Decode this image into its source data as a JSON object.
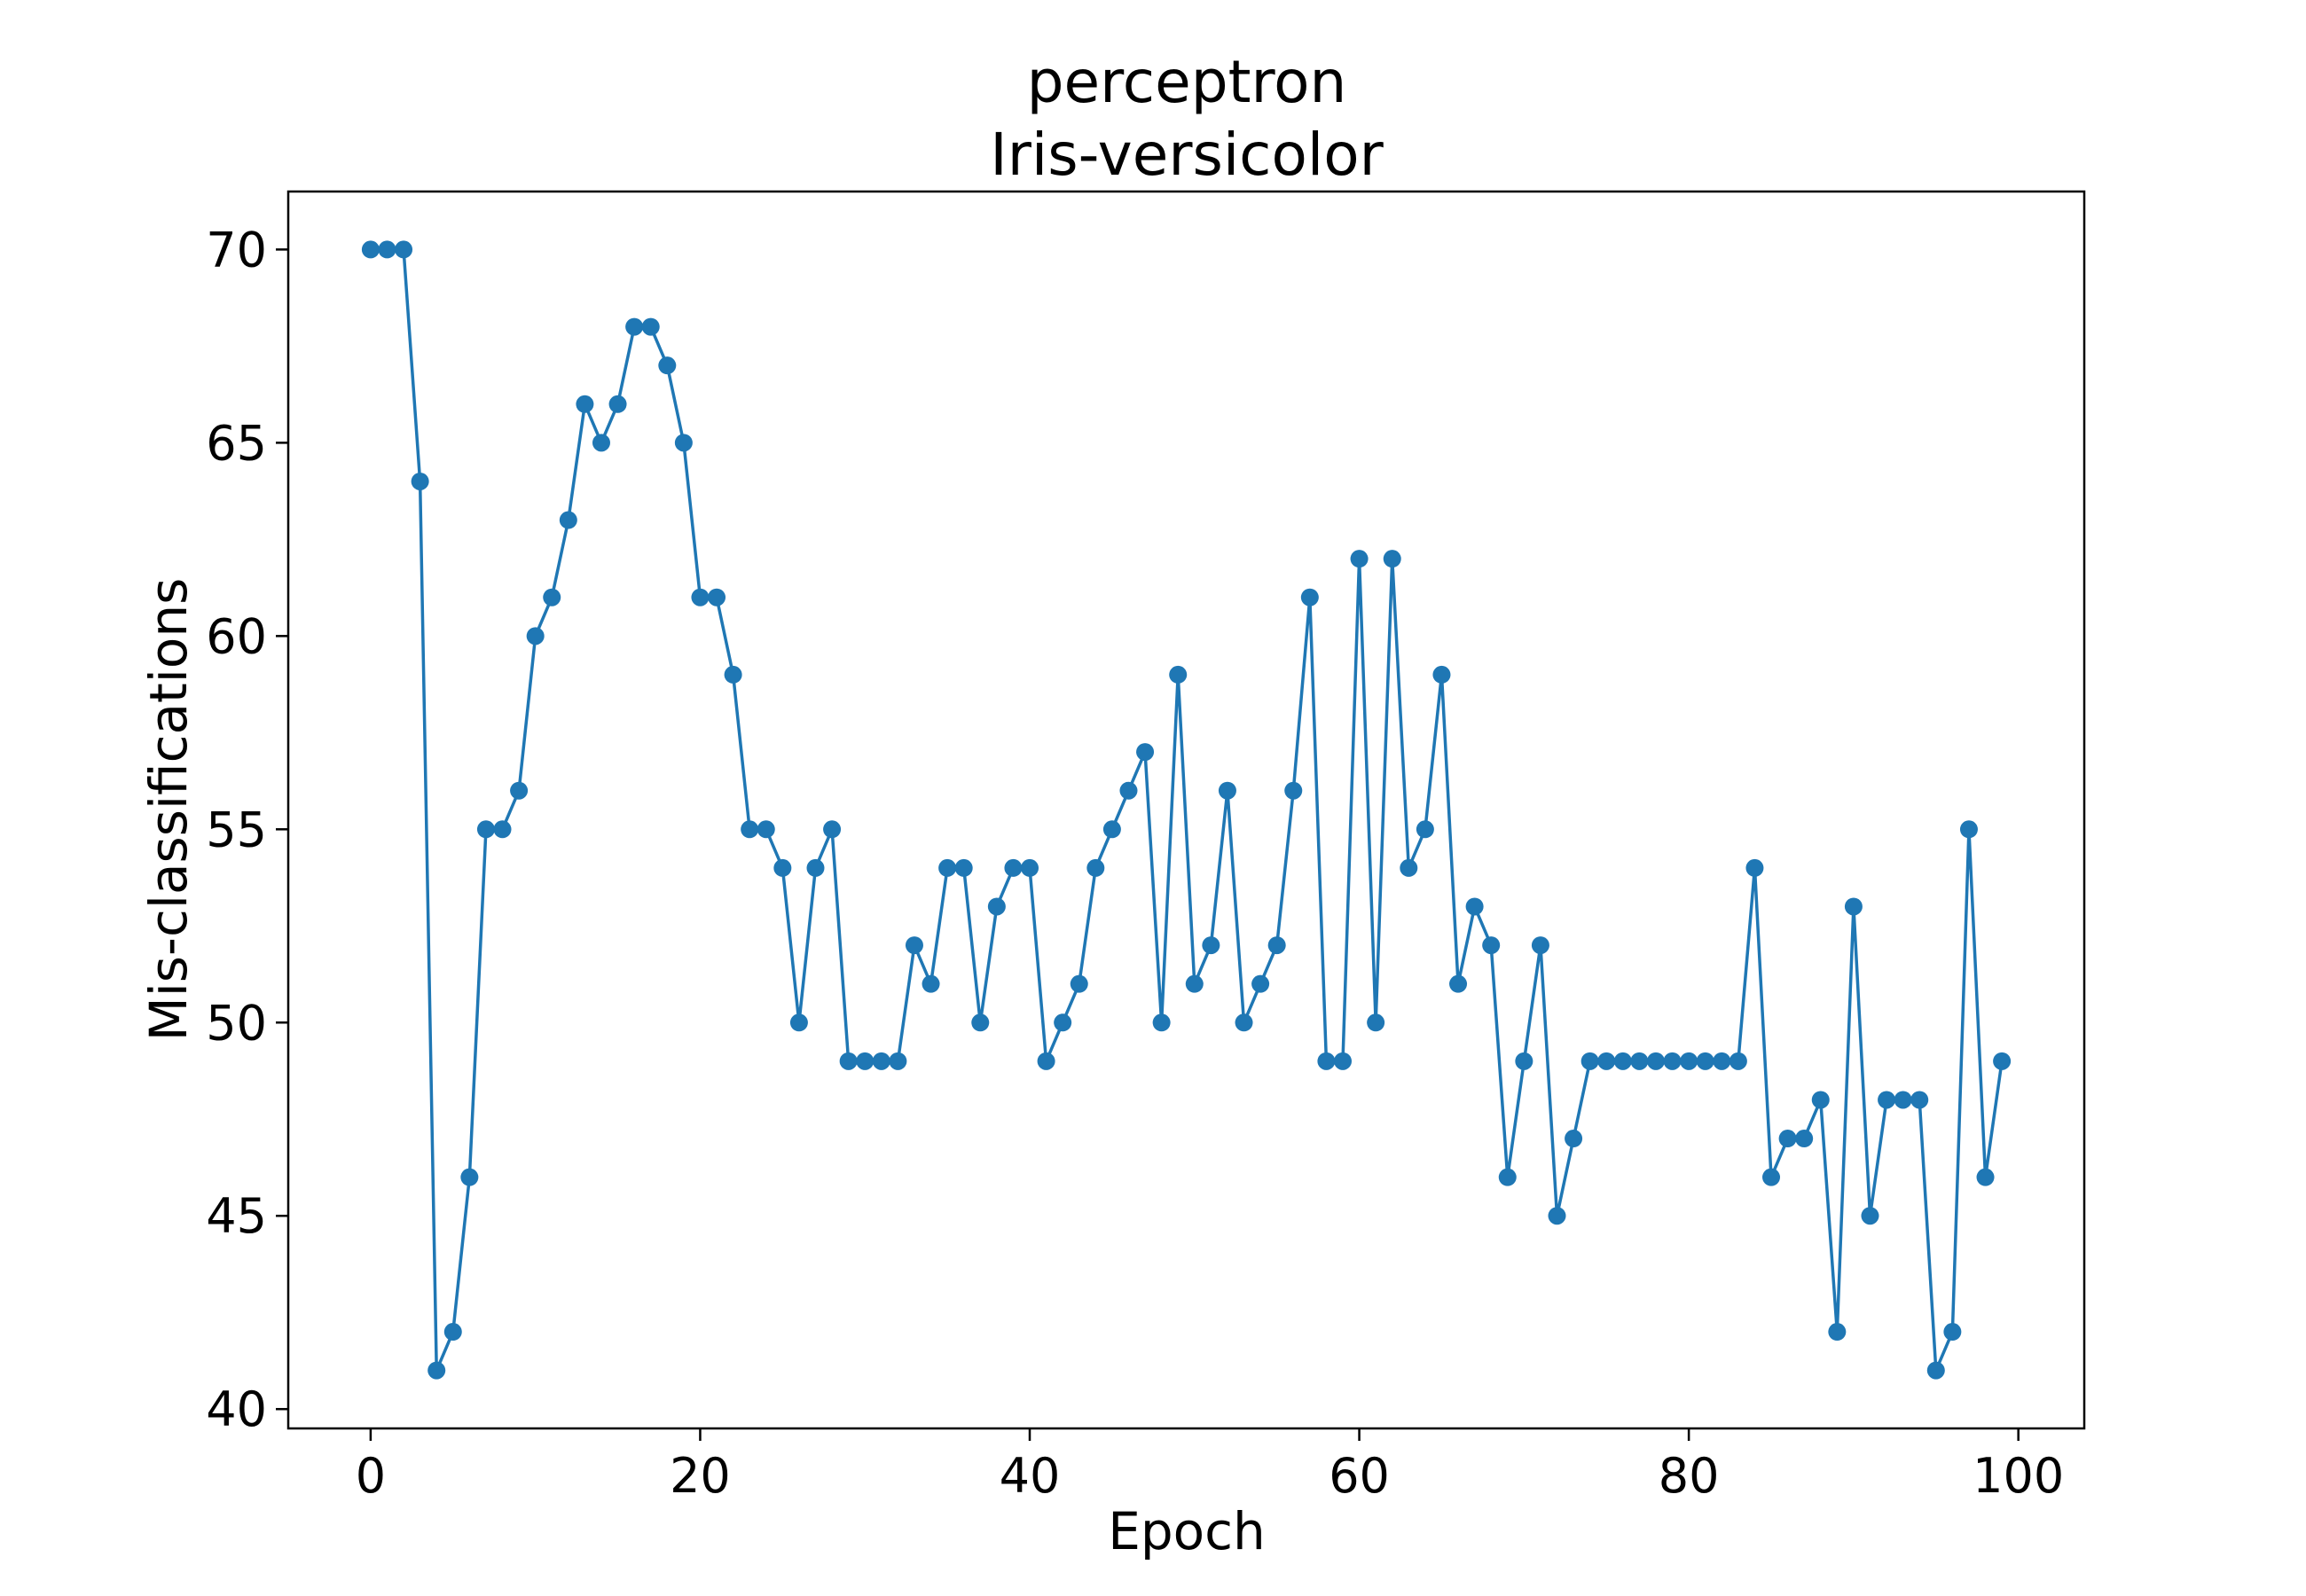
{
  "chart_data": {
    "type": "line",
    "title": "perceptron",
    "subtitle": "Iris-versicolor",
    "xlabel": "Epoch",
    "ylabel": "Mis-classifications",
    "xlim": [
      -5,
      104
    ],
    "ylim": [
      39.5,
      71.5
    ],
    "xticks": [
      0,
      20,
      40,
      60,
      80,
      100
    ],
    "yticks": [
      40,
      45,
      50,
      55,
      60,
      65,
      70
    ],
    "grid": false,
    "marker": "circle",
    "series": [
      {
        "color": "#1f77b4",
        "x": [
          0,
          1,
          2,
          3,
          4,
          5,
          6,
          7,
          8,
          9,
          10,
          11,
          12,
          13,
          14,
          15,
          16,
          17,
          18,
          19,
          20,
          21,
          22,
          23,
          24,
          25,
          26,
          27,
          28,
          29,
          30,
          31,
          32,
          33,
          34,
          35,
          36,
          37,
          38,
          39,
          40,
          41,
          42,
          43,
          44,
          45,
          46,
          47,
          48,
          49,
          50,
          51,
          52,
          53,
          54,
          55,
          56,
          57,
          58,
          59,
          60,
          61,
          62,
          63,
          64,
          65,
          66,
          67,
          68,
          69,
          70,
          71,
          72,
          73,
          74,
          75,
          76,
          77,
          78,
          79,
          80,
          81,
          82,
          83,
          84,
          85,
          86,
          87,
          88,
          89,
          90,
          91,
          92,
          93,
          94,
          95,
          96,
          97,
          98,
          99
        ],
        "values": [
          70,
          70,
          70,
          64,
          41,
          42,
          46,
          55,
          55,
          56,
          60,
          61,
          63,
          66,
          65,
          66,
          68,
          68,
          67,
          65,
          61,
          61,
          59,
          55,
          55,
          54,
          50,
          54,
          55,
          49,
          49,
          49,
          49,
          52,
          51,
          54,
          54,
          50,
          53,
          54,
          54,
          49,
          50,
          51,
          54,
          55,
          56,
          57,
          50,
          59,
          51,
          52,
          56,
          50,
          51,
          52,
          56,
          61,
          49,
          49,
          62,
          50,
          62,
          54,
          55,
          59,
          51,
          53,
          52,
          46,
          49,
          52,
          45,
          47,
          49,
          49,
          49,
          49,
          49,
          49,
          49,
          49,
          49,
          49,
          54,
          46,
          47,
          47,
          48,
          42,
          53,
          45,
          48,
          48,
          48,
          41,
          42,
          55,
          46,
          49
        ]
      }
    ]
  }
}
